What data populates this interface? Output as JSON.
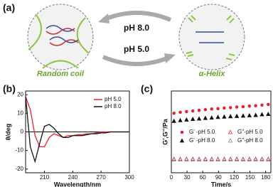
{
  "scheme": {
    "panel_label": "(a)",
    "arrow_top": "pH 8.0",
    "arrow_bottom": "pH 5.0",
    "left_label": "Random coil",
    "right_label": "α-Helix"
  },
  "chart_data": [
    {
      "type": "line",
      "panel_label": "(b)",
      "xlabel": "Wavelength/nm",
      "ylabel": "θ/deg",
      "x": [
        190,
        195,
        200,
        205,
        210,
        215,
        220,
        225,
        230,
        235,
        240,
        245,
        250,
        255,
        260,
        265,
        270,
        275,
        280,
        285,
        290,
        295,
        300
      ],
      "xlim": [
        190,
        300
      ],
      "xticks": [
        210,
        240,
        270,
        300
      ],
      "ylim": [
        -22,
        22
      ],
      "yticks": [
        -20,
        -10,
        0,
        10,
        20
      ],
      "zero_line": true,
      "legend": "upper right",
      "series": [
        {
          "name": "pH 5.0",
          "color": "#e8202a",
          "values": [
            19,
            12,
            -2,
            -8,
            -8,
            -3,
            -1,
            -2,
            -3,
            -2,
            -2,
            -1.5,
            -1.5,
            -1,
            -1,
            -0.5,
            0,
            0,
            0,
            0,
            0,
            0,
            0
          ]
        },
        {
          "name": "pH 8.0",
          "color": "#111111",
          "values": [
            19,
            -8,
            -16,
            -6,
            3,
            4,
            2,
            -1,
            -3,
            -3,
            -2,
            -2,
            -2,
            -1.5,
            -1,
            -1,
            -0.5,
            -0.5,
            0,
            0,
            0,
            0,
            0
          ]
        }
      ]
    },
    {
      "type": "scatter",
      "panel_label": "(c)",
      "xlabel": "Time/s",
      "ylabel": "G',G''/Pa",
      "x": [
        5,
        17,
        29,
        41,
        53,
        65,
        77,
        89,
        101,
        113,
        125,
        137,
        149,
        161,
        173,
        185
      ],
      "xlim": [
        0,
        190
      ],
      "xticks": [
        0,
        30,
        60,
        90,
        120,
        150,
        180
      ],
      "ylim": [
        0,
        2500
      ],
      "legend": "lower center",
      "series": [
        {
          "name": "G' -pH 5.0",
          "color": "#e8202a",
          "marker": "circle",
          "values": [
            1820,
            1850,
            1870,
            1890,
            1910,
            1930,
            1950,
            1960,
            1980,
            1990,
            2010,
            2020,
            2040,
            2050,
            2070,
            2090
          ]
        },
        {
          "name": "G' -pH 8.0",
          "color": "#111111",
          "marker": "triangle",
          "values": [
            1580,
            1600,
            1620,
            1640,
            1650,
            1670,
            1680,
            1700,
            1710,
            1720,
            1730,
            1740,
            1750,
            1760,
            1780,
            1790
          ]
        },
        {
          "name": "G''-pH 5.0",
          "color": "#e8202a",
          "marker": "triangle-open",
          "values": [
            420,
            420,
            420,
            420,
            420,
            420,
            420,
            420,
            420,
            420,
            420,
            420,
            420,
            420,
            420,
            420
          ]
        },
        {
          "name": "G''-pH 8.0",
          "color": "#888888",
          "marker": "triangle-open",
          "values": [
            400,
            400,
            400,
            400,
            400,
            400,
            400,
            400,
            400,
            400,
            400,
            400,
            400,
            400,
            400,
            400
          ]
        }
      ]
    }
  ]
}
